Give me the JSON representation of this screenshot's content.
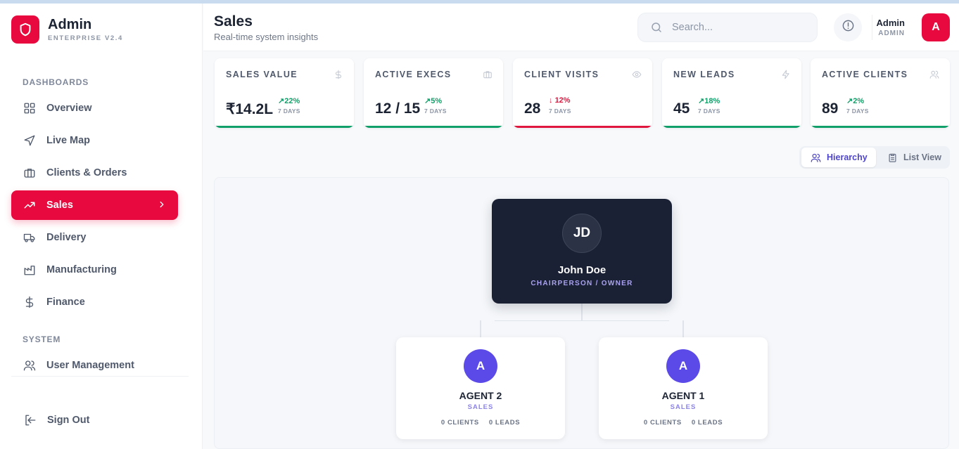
{
  "brand": {
    "title": "Admin",
    "subtitle": "ENTERPRISE V2.4",
    "accent": "#e8093e"
  },
  "sidebar": {
    "section_dashboards": "DASHBOARDS",
    "section_system": "SYSTEM",
    "items": [
      {
        "label": "Overview",
        "icon": "grid-icon"
      },
      {
        "label": "Live Map",
        "icon": "navigation-icon"
      },
      {
        "label": "Clients & Orders",
        "icon": "briefcase-icon"
      },
      {
        "label": "Sales",
        "icon": "trending-up-icon",
        "active": true
      },
      {
        "label": "Delivery",
        "icon": "truck-icon"
      },
      {
        "label": "Manufacturing",
        "icon": "factory-icon"
      },
      {
        "label": "Finance",
        "icon": "dollar-icon"
      }
    ],
    "system_items": [
      {
        "label": "User Management",
        "icon": "users-icon"
      }
    ],
    "sign_out": "Sign Out"
  },
  "header": {
    "title": "Sales",
    "subtitle": "Real-time system insights",
    "search_placeholder": "Search...",
    "user_name": "Admin",
    "user_role": "ADMIN",
    "avatar_initial": "A"
  },
  "stats": [
    {
      "label": "SALES VALUE",
      "value": "₹14.2L",
      "trend": "22%",
      "direction": "up",
      "period": "7 DAYS",
      "icon": "dollar-icon"
    },
    {
      "label": "ACTIVE EXECS",
      "value": "12 / 15",
      "trend": "5%",
      "direction": "up",
      "period": "7 DAYS",
      "icon": "briefcase-icon"
    },
    {
      "label": "CLIENT VISITS",
      "value": "28",
      "trend": "12%",
      "direction": "down",
      "period": "7 DAYS",
      "icon": "eye-icon"
    },
    {
      "label": "NEW LEADS",
      "value": "45",
      "trend": "18%",
      "direction": "up",
      "period": "7 DAYS",
      "icon": "zap-icon"
    },
    {
      "label": "ACTIVE CLIENTS",
      "value": "89",
      "trend": "2%",
      "direction": "up",
      "period": "7 DAYS",
      "icon": "users-icon"
    }
  ],
  "view_toggle": {
    "hierarchy": "Hierarchy",
    "list": "List View",
    "selected": "Hierarchy"
  },
  "hierarchy": {
    "root": {
      "initials": "JD",
      "name": "John Doe",
      "role": "CHAIRPERSON / OWNER"
    },
    "agents": [
      {
        "initial": "A",
        "name": "AGENT 2",
        "role": "SALES",
        "clients": "0 CLIENTS",
        "leads": "0 LEADS"
      },
      {
        "initial": "A",
        "name": "AGENT 1",
        "role": "SALES",
        "clients": "0 CLIENTS",
        "leads": "0 LEADS"
      }
    ]
  },
  "colors": {
    "up": "#12a06a",
    "down": "#e0163f",
    "agent_avatar": "#5b4ae8",
    "root_card": "#1b2135"
  }
}
